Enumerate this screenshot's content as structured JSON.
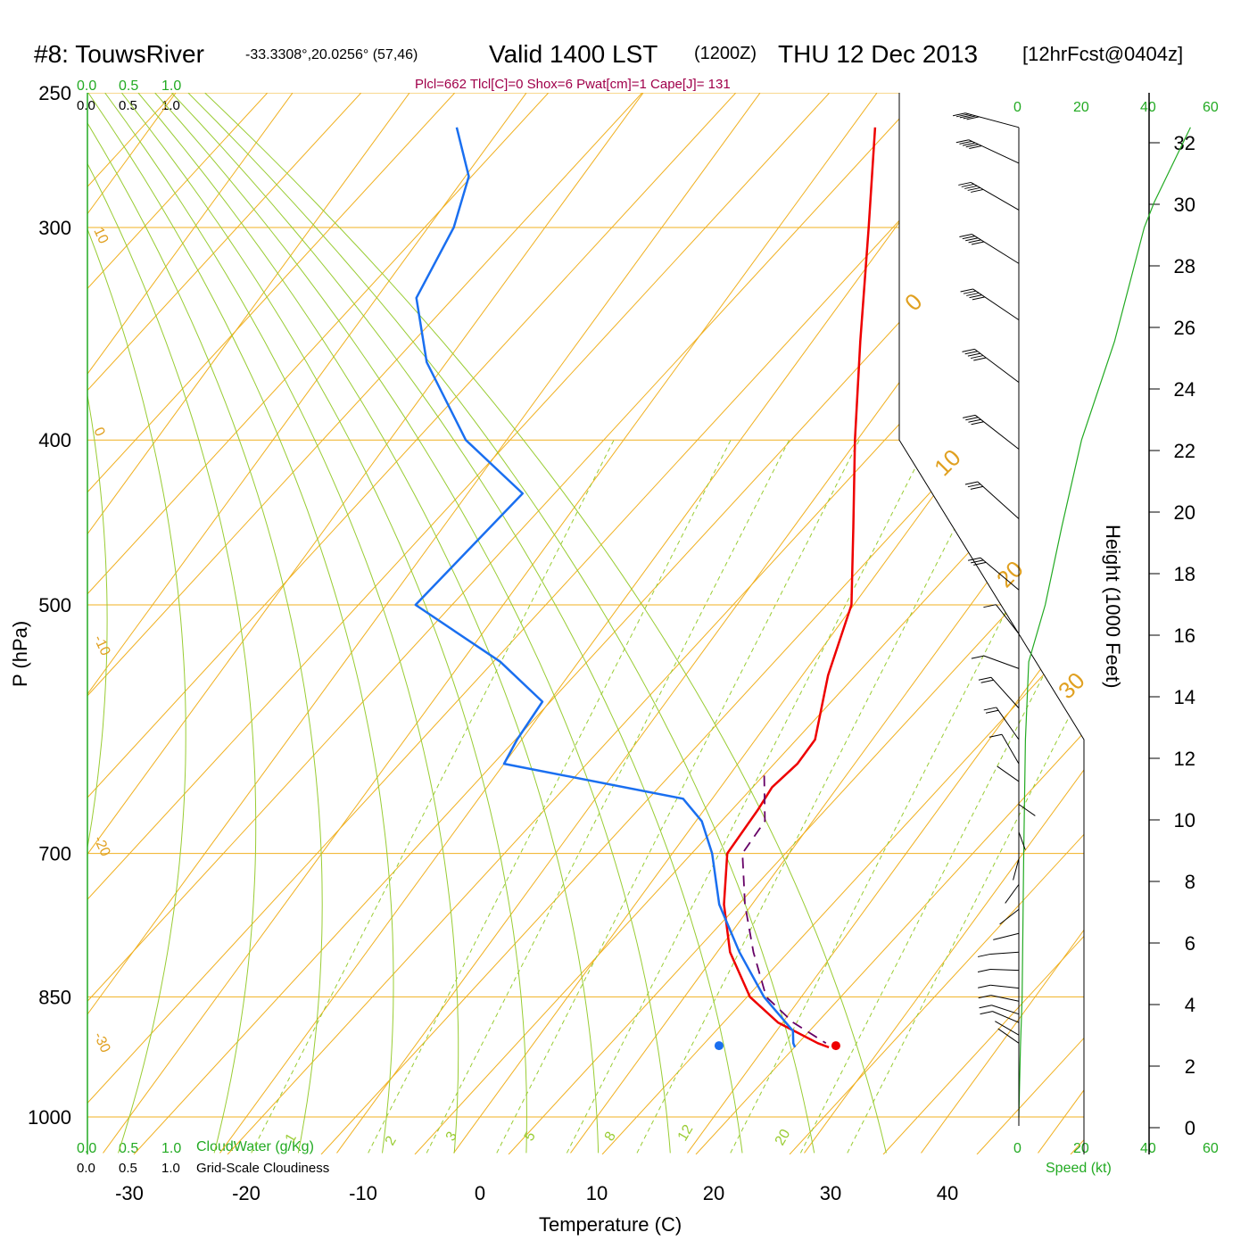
{
  "header": {
    "station": "#8: TouwsRiver",
    "coords": "-33.3308°,20.0256° (57,46)",
    "valid_a": "Valid 1400 LST",
    "valid_z": "(1200Z)",
    "valid_b": "THU 12 Dec 2013",
    "forecast": "[12hrFcst@0404z]"
  },
  "indices": "Plcl=662 Tlcl[C]=0 Shox=6 Pwat[cm]=1 Cape[J]= 131",
  "cloud_scale": {
    "green_ticks": [
      "0.0",
      "0.5",
      "1.0"
    ],
    "black_ticks": [
      "0.0",
      "0.5",
      "1.0"
    ],
    "green_label": "CloudWater (g/Kg)",
    "black_label": "Grid-Scale Cloudiness"
  },
  "wind_speed_axis": {
    "ticks": [
      "0",
      "20",
      "40",
      "60"
    ],
    "label": "Speed (kt)"
  },
  "colors": {
    "isotherm": "#f0b020",
    "adiabat": "#99cc33",
    "temperature": "#ee0000",
    "dewpoint": "#1a6ff0",
    "parcel": "#660066",
    "speed": "#22aa22"
  },
  "chart_data": {
    "type": "line",
    "xlabel": "Temperature (C)",
    "ylabel": "P (hPa)",
    "y2label": "Height (1000 Feet)",
    "x_ticks": [
      -30,
      -20,
      -10,
      0,
      10,
      20,
      30,
      40
    ],
    "p_ticks": [
      250,
      300,
      400,
      500,
      700,
      850,
      1000
    ],
    "height_ticks": [
      0,
      2,
      4,
      6,
      8,
      10,
      12,
      14,
      16,
      18,
      20,
      22,
      24,
      26,
      28,
      30,
      32
    ],
    "isotherm_labels": [
      "10",
      "0",
      "-10",
      "-20",
      "-30",
      "0",
      "10",
      "20",
      "30"
    ],
    "mixing_ratio_labels": [
      "1",
      "2",
      "3",
      "5",
      "8",
      "12",
      "20"
    ],
    "series": [
      {
        "name": "Temperature",
        "points": [
          [
            262,
            -28.0
          ],
          [
            300,
            -22.3
          ],
          [
            350,
            -15.9
          ],
          [
            400,
            -10.2
          ],
          [
            450,
            -4.9
          ],
          [
            500,
            -0.2
          ],
          [
            550,
            2.2
          ],
          [
            600,
            5.1
          ],
          [
            620,
            5.1
          ],
          [
            640,
            4.4
          ],
          [
            660,
            4.6
          ],
          [
            700,
            4.7
          ],
          [
            750,
            7.6
          ],
          [
            800,
            11.1
          ],
          [
            850,
            15.6
          ],
          [
            880,
            19.6
          ],
          [
            905,
            24.3
          ],
          [
            910,
            25.5
          ]
        ]
      },
      {
        "name": "Dewpoint",
        "points": [
          [
            262,
            -63.8
          ],
          [
            280,
            -59.7
          ],
          [
            300,
            -57.8
          ],
          [
            330,
            -56.6
          ],
          [
            360,
            -51.7
          ],
          [
            400,
            -43.5
          ],
          [
            430,
            -35.3
          ],
          [
            500,
            -37.5
          ],
          [
            540,
            -26.7
          ],
          [
            570,
            -20.6
          ],
          [
            600,
            -20.4
          ],
          [
            620,
            -20.0
          ],
          [
            650,
            -2.5
          ],
          [
            670,
            0.5
          ],
          [
            700,
            3.4
          ],
          [
            750,
            7.2
          ],
          [
            800,
            11.9
          ],
          [
            850,
            16.8
          ],
          [
            890,
            21.4
          ],
          [
            905,
            22.2
          ],
          [
            910,
            22.6
          ]
        ]
      },
      {
        "name": "Parcel",
        "points": [
          [
            630,
            3.0
          ],
          [
            670,
            5.9
          ],
          [
            700,
            6.0
          ],
          [
            750,
            9.4
          ],
          [
            800,
            13.1
          ],
          [
            850,
            17.0
          ],
          [
            880,
            20.9
          ],
          [
            905,
            25.0
          ]
        ]
      }
    ],
    "surface_marks": {
      "p": 908,
      "temperature": 26.0,
      "dewpoint": 16.0
    },
    "winds": [
      {
        "p": 905,
        "dir": 305,
        "spd": 7
      },
      {
        "p": 895,
        "dir": 300,
        "spd": 9
      },
      {
        "p": 880,
        "dir": 293,
        "spd": 10
      },
      {
        "p": 870,
        "dir": 288,
        "spd": 10
      },
      {
        "p": 855,
        "dir": 282,
        "spd": 10
      },
      {
        "p": 840,
        "dir": 276,
        "spd": 10
      },
      {
        "p": 820,
        "dir": 272,
        "spd": 10
      },
      {
        "p": 800,
        "dir": 266,
        "spd": 10
      },
      {
        "p": 780,
        "dir": 256,
        "spd": 8
      },
      {
        "p": 755,
        "dir": 232,
        "spd": 6
      },
      {
        "p": 730,
        "dir": 216,
        "spd": 5
      },
      {
        "p": 705,
        "dir": 195,
        "spd": 4
      },
      {
        "p": 680,
        "dir": 160,
        "spd": 1
      },
      {
        "p": 655,
        "dir": 125,
        "spd": 2
      },
      {
        "p": 635,
        "dir": 305,
        "spd": 8
      },
      {
        "p": 620,
        "dir": 330,
        "spd": 15
      },
      {
        "p": 600,
        "dir": 325,
        "spd": 20
      },
      {
        "p": 575,
        "dir": 318,
        "spd": 22
      },
      {
        "p": 545,
        "dir": 290,
        "spd": 18
      },
      {
        "p": 520,
        "dir": 322,
        "spd": 18
      },
      {
        "p": 490,
        "dir": 310,
        "spd": 30
      },
      {
        "p": 445,
        "dir": 312,
        "spd": 35
      },
      {
        "p": 405,
        "dir": 308,
        "spd": 45
      },
      {
        "p": 370,
        "dir": 307,
        "spd": 50
      },
      {
        "p": 340,
        "dir": 304,
        "spd": 50
      },
      {
        "p": 315,
        "dir": 302,
        "spd": 55
      },
      {
        "p": 293,
        "dir": 300,
        "spd": 55
      },
      {
        "p": 275,
        "dir": 295,
        "spd": 60
      },
      {
        "p": 262,
        "dir": 285,
        "spd": 60
      }
    ],
    "speed_profile": [
      [
        1000,
        0
      ],
      [
        910,
        0.5
      ],
      [
        850,
        1
      ],
      [
        700,
        1.5
      ],
      [
        600,
        2
      ],
      [
        540,
        3
      ],
      [
        500,
        8
      ],
      [
        450,
        13
      ],
      [
        400,
        19
      ],
      [
        350,
        29
      ],
      [
        300,
        38
      ],
      [
        290,
        41
      ],
      [
        262,
        52
      ]
    ]
  }
}
